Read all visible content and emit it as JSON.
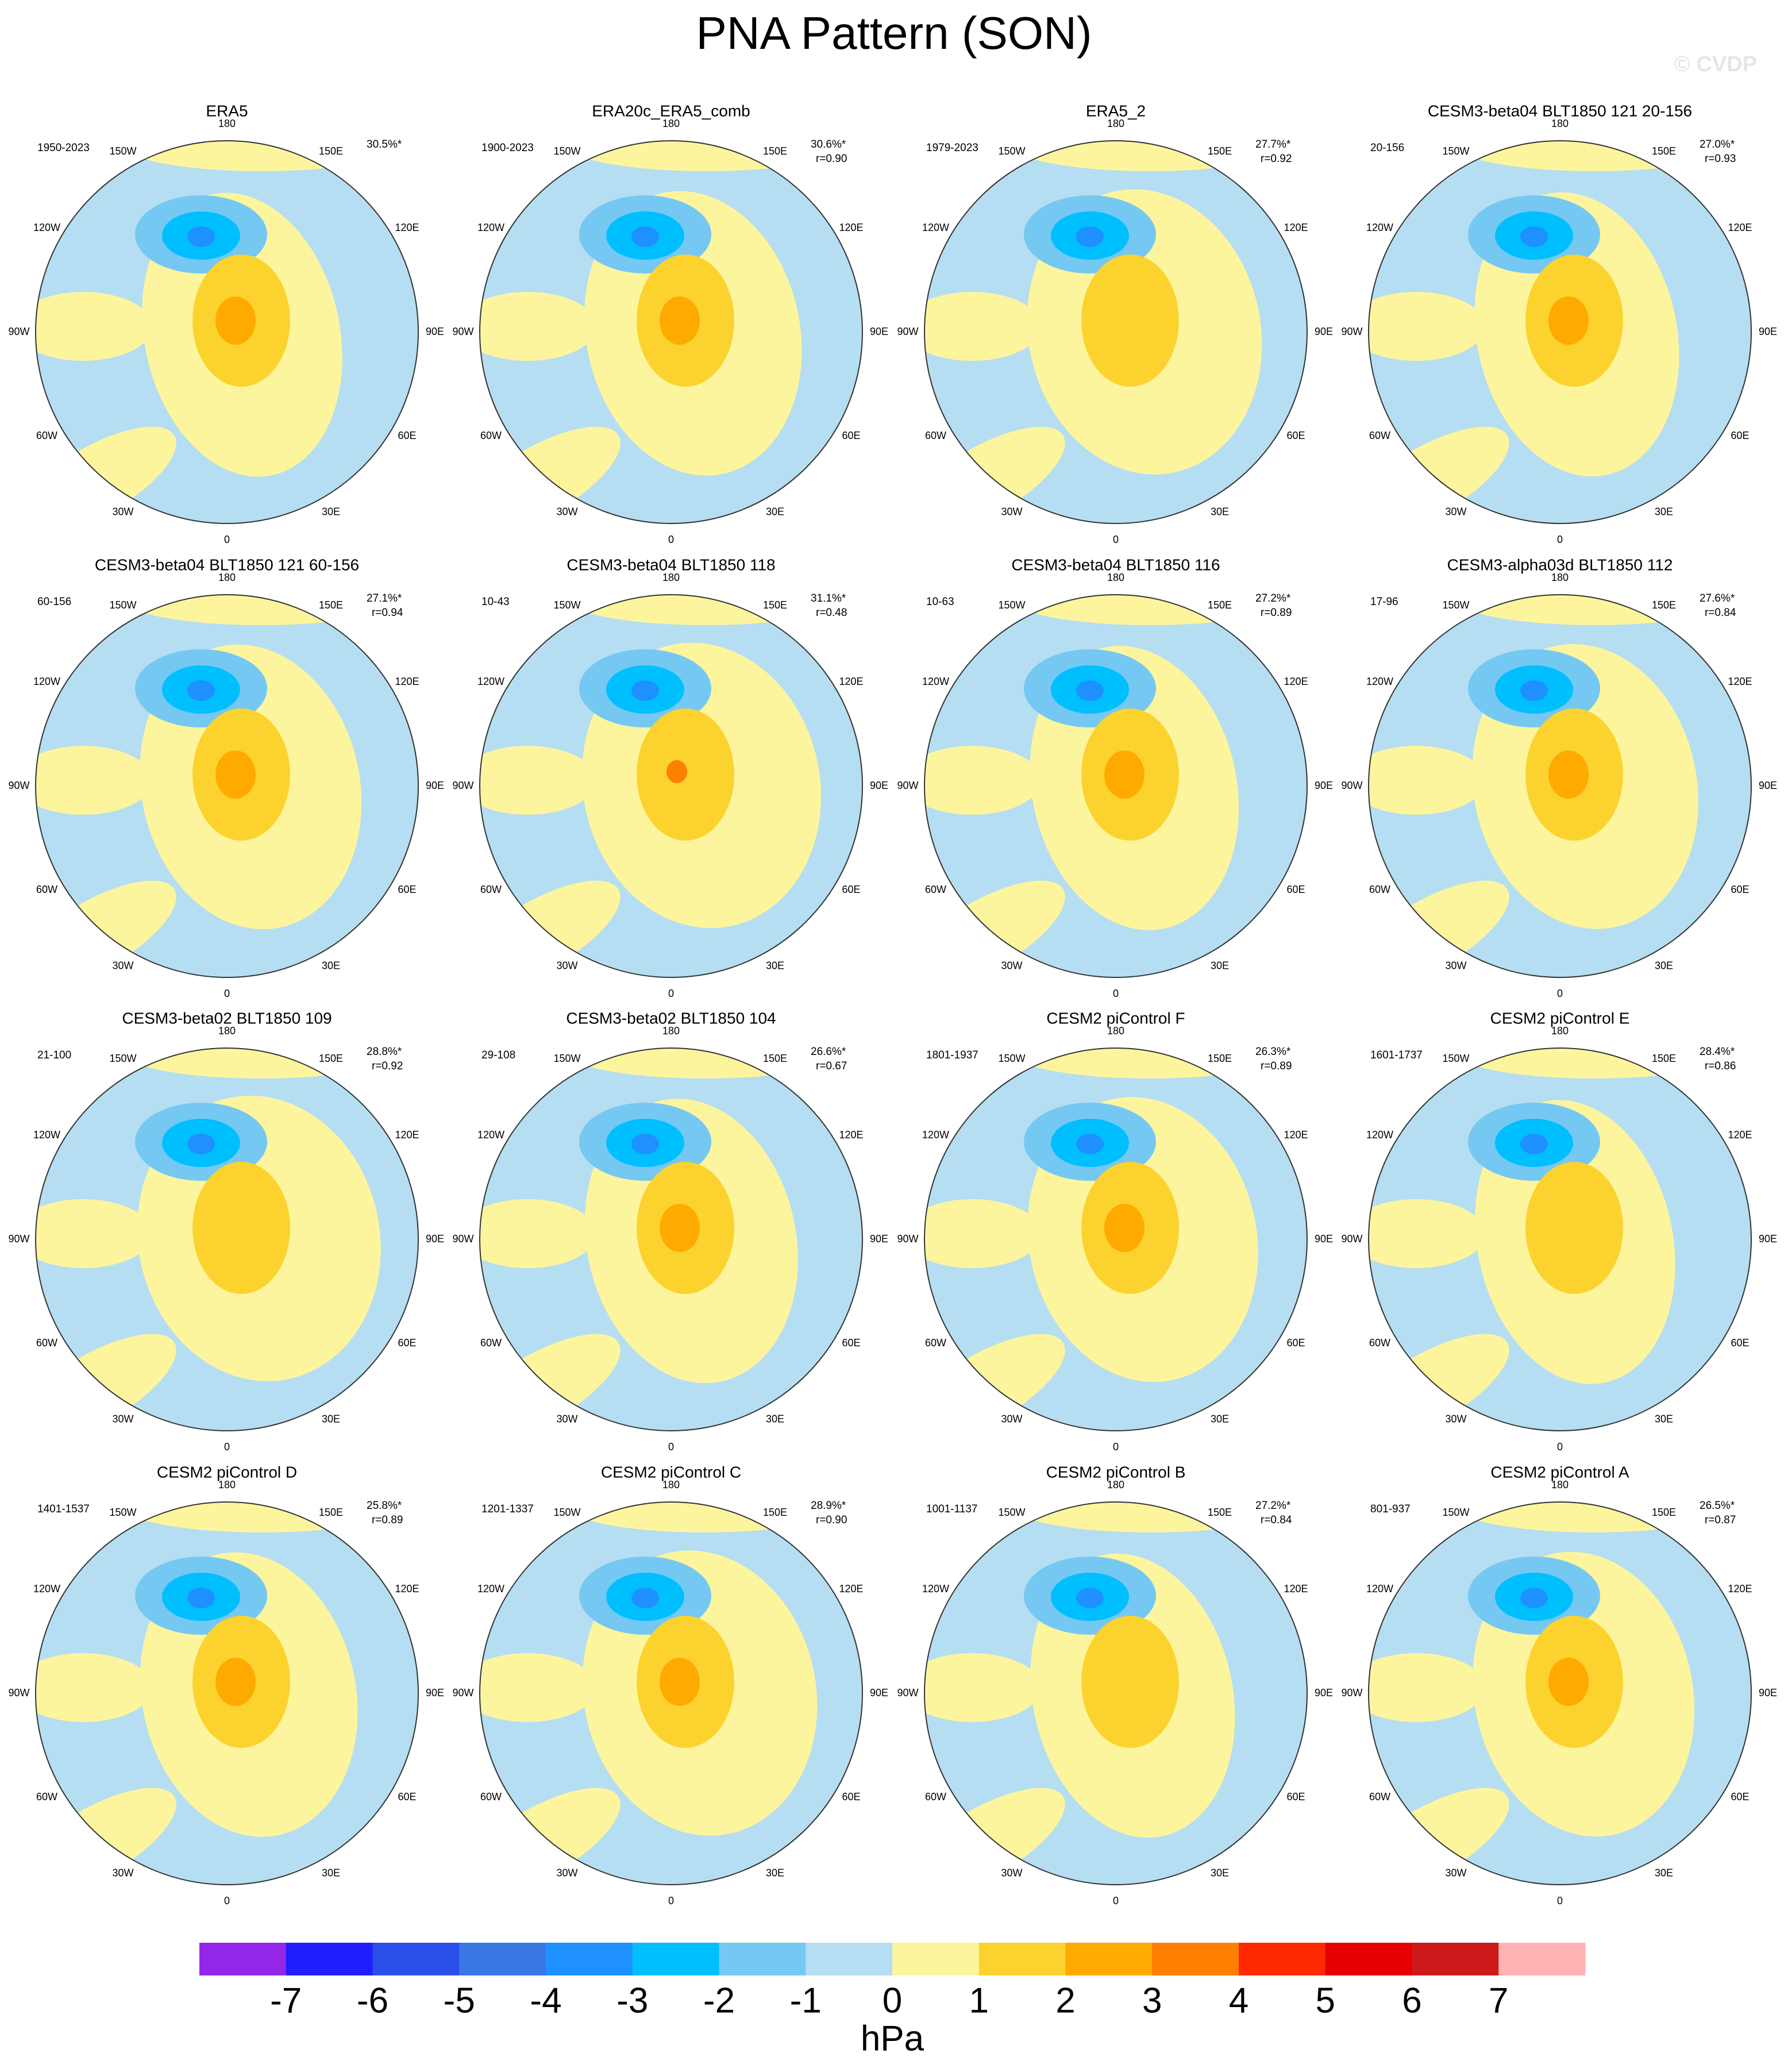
{
  "title": "PNA Pattern (SON)",
  "watermark": "© CVDP",
  "lon_labels": [
    "180",
    "150E",
    "120E",
    "90E",
    "60E",
    "30E",
    "0",
    "30W",
    "60W",
    "90W",
    "120W",
    "150W"
  ],
  "panels": [
    {
      "title": "ERA5",
      "years": "1950-2023",
      "pct": "30.5%*"
    },
    {
      "title": "ERA20c_ERA5_comb",
      "years": "1900-2023",
      "pct": "30.6%*",
      "r": "r=0.90"
    },
    {
      "title": "ERA5_2",
      "years": "1979-2023",
      "pct": "27.7%*",
      "r": "r=0.92"
    },
    {
      "title": "CESM3-beta04 BLT1850 121 20-156",
      "years": "20-156",
      "pct": "27.0%*",
      "r": "r=0.93"
    },
    {
      "title": "CESM3-beta04 BLT1850 121 60-156",
      "years": "60-156",
      "pct": "27.1%*",
      "r": "r=0.94"
    },
    {
      "title": "CESM3-beta04 BLT1850 118",
      "years": "10-43",
      "pct": "31.1%*",
      "r": "r=0.48"
    },
    {
      "title": "CESM3-beta04 BLT1850 116",
      "years": "10-63",
      "pct": "27.2%*",
      "r": "r=0.89"
    },
    {
      "title": "CESM3-alpha03d BLT1850 112",
      "years": "17-96",
      "pct": "27.6%*",
      "r": "r=0.84"
    },
    {
      "title": "CESM3-beta02 BLT1850 109",
      "years": "21-100",
      "pct": "28.8%*",
      "r": "r=0.92"
    },
    {
      "title": "CESM3-beta02 BLT1850 104",
      "years": "29-108",
      "pct": "26.6%*",
      "r": "r=0.67"
    },
    {
      "title": "CESM2 piControl F",
      "years": "1801-1937",
      "pct": "26.3%*",
      "r": "r=0.89"
    },
    {
      "title": "CESM2 piControl E",
      "years": "1601-1737",
      "pct": "28.4%*",
      "r": "r=0.86"
    },
    {
      "title": "CESM2 piControl D",
      "years": "1401-1537",
      "pct": "25.8%*",
      "r": "r=0.89"
    },
    {
      "title": "CESM2 piControl C",
      "years": "1201-1337",
      "pct": "28.9%*",
      "r": "r=0.90"
    },
    {
      "title": "CESM2 piControl B",
      "years": "1001-1137",
      "pct": "27.2%*",
      "r": "r=0.84"
    },
    {
      "title": "CESM2 piControl A",
      "years": "801-937",
      "pct": "26.5%*",
      "r": "r=0.87"
    }
  ],
  "colorbar": {
    "colors": [
      "#9426e8",
      "#1e1eff",
      "#2a4ee8",
      "#3a78e6",
      "#1e90ff",
      "#00bfff",
      "#75c8f2",
      "#b5def2",
      "#fdf59e",
      "#fcd32e",
      "#ffaa00",
      "#ff7f00",
      "#ff2a00",
      "#e60000",
      "#cc1a1a",
      "#ffb3b3"
    ],
    "ticks": [
      -7,
      -6,
      -5,
      -4,
      -3,
      -2,
      -1,
      0,
      1,
      2,
      3,
      4,
      5,
      6,
      7
    ],
    "label": "hPa"
  }
}
